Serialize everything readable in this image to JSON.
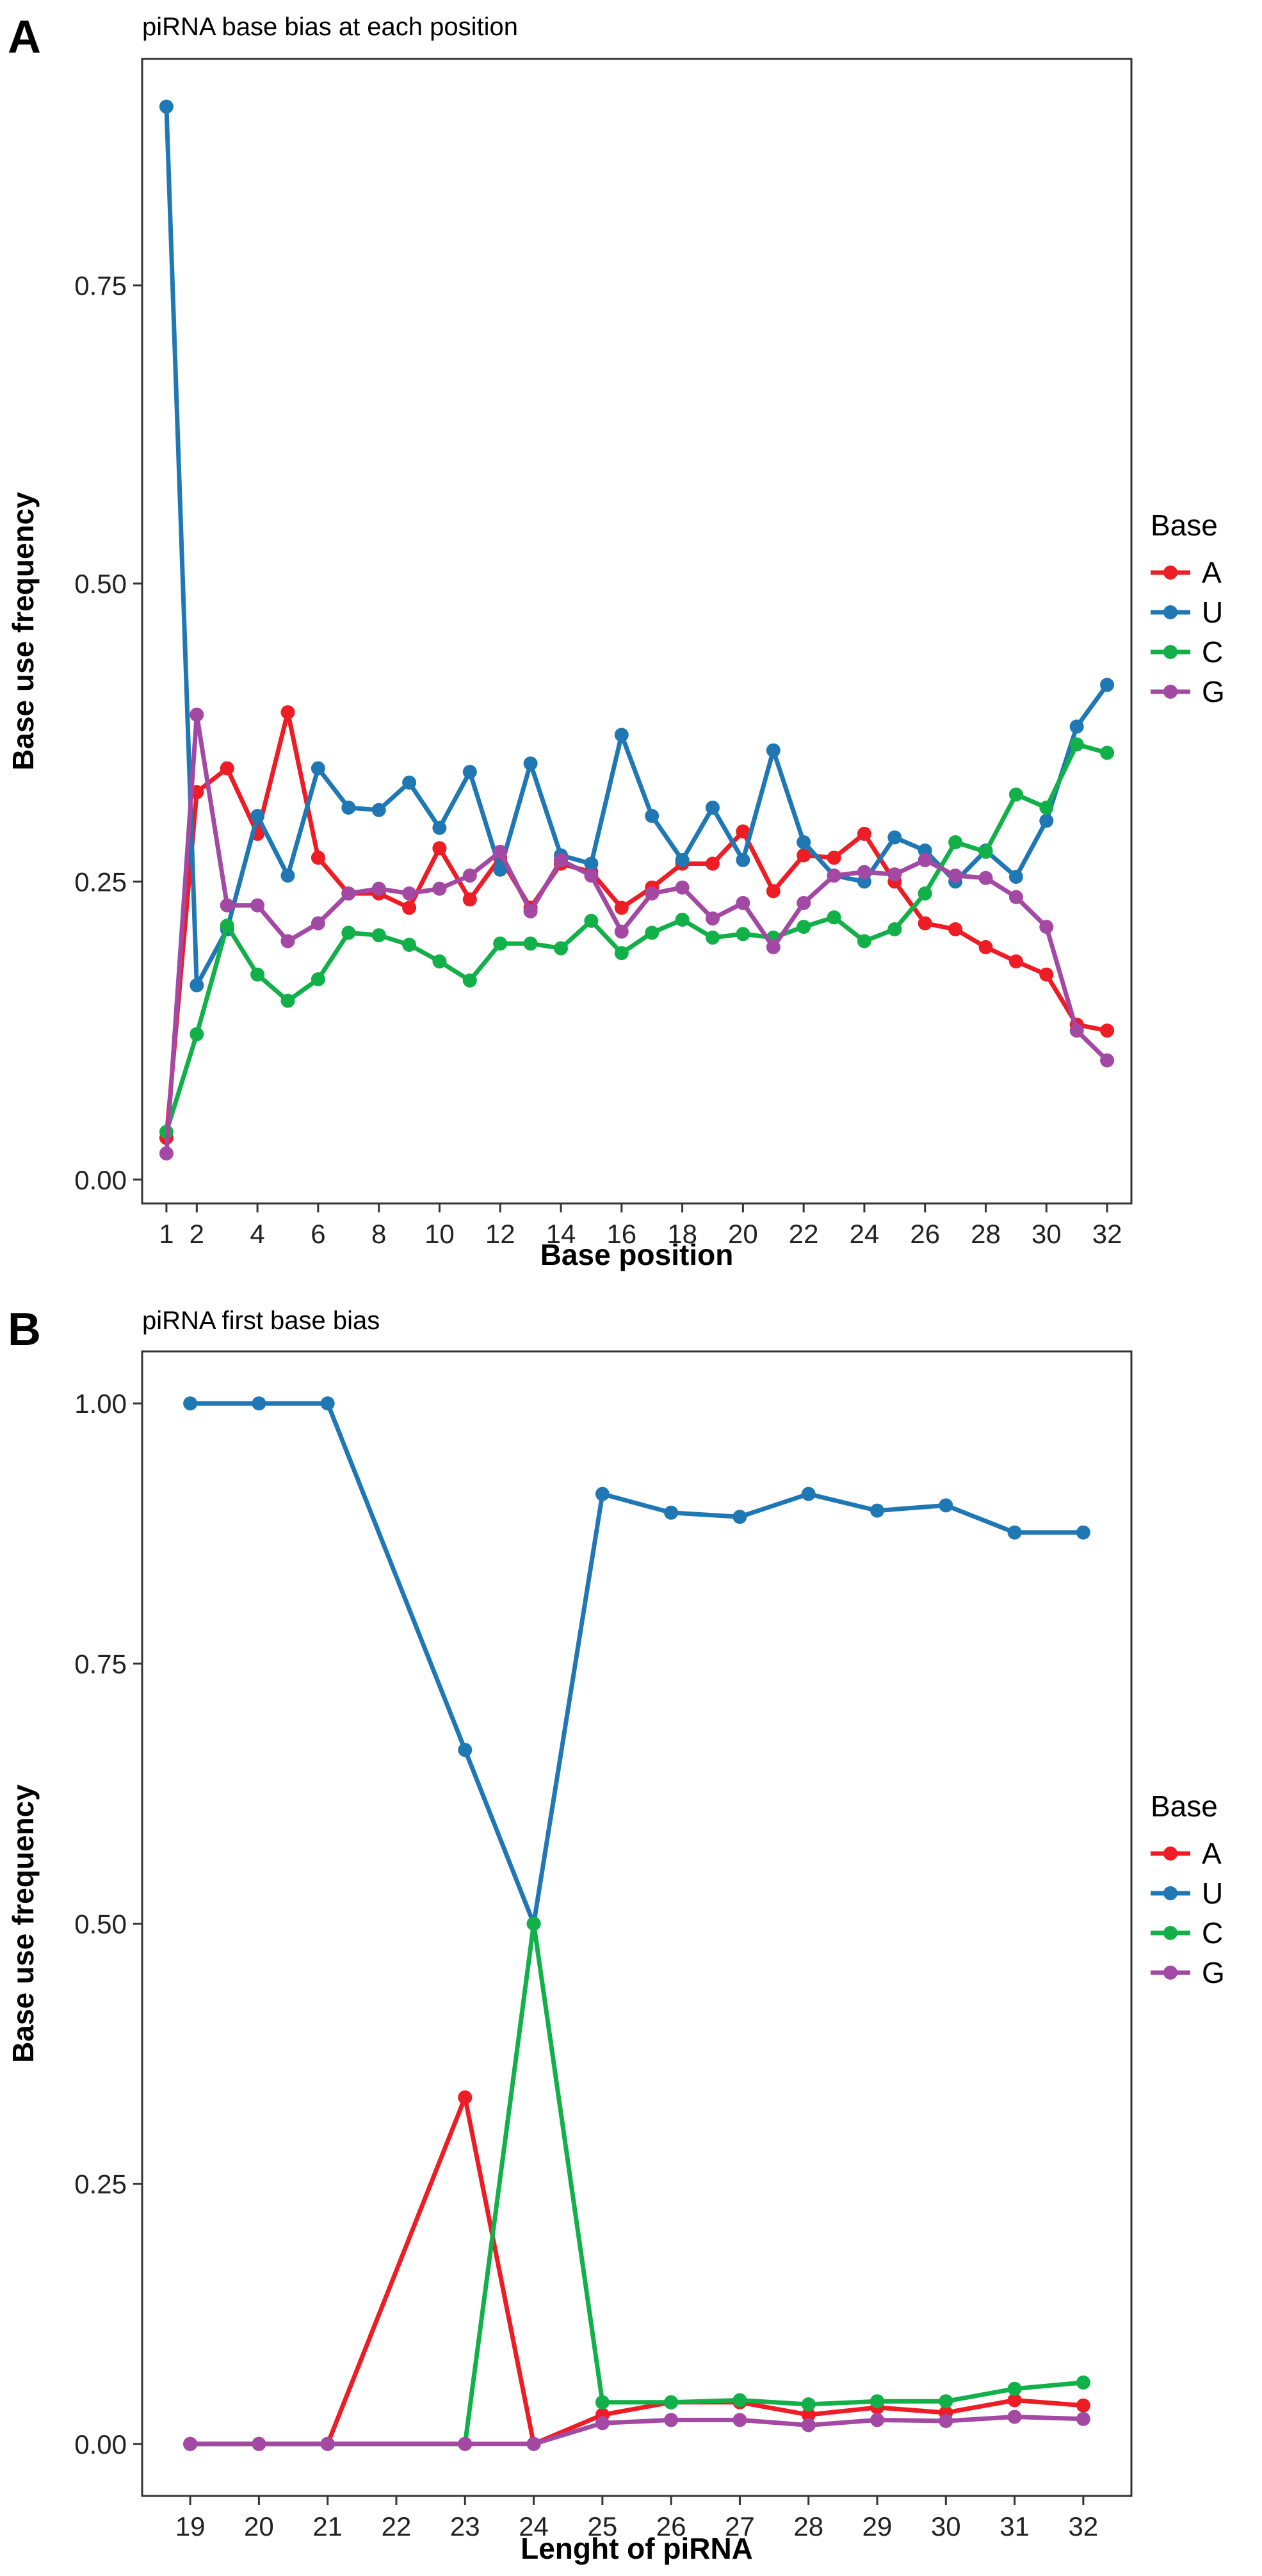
{
  "colors": {
    "A": "#ee1c25",
    "U": "#1f78b4",
    "C": "#12b048",
    "G": "#a349a4"
  },
  "chart_data": [
    {
      "type": "line",
      "panel_label": "A",
      "title": "piRNA base bias at each position",
      "xlabel": "Base position",
      "ylabel": "Base use frequency",
      "xlim": [
        0.2,
        32.8
      ],
      "ylim": [
        -0.02,
        0.94
      ],
      "yticks": [
        0.0,
        0.25,
        0.5,
        0.75
      ],
      "ytick_labels": [
        "0.00",
        "0.25",
        "0.50",
        "0.75"
      ],
      "xticks": [
        1,
        2,
        4,
        6,
        8,
        10,
        12,
        14,
        16,
        18,
        20,
        22,
        24,
        26,
        28,
        30,
        32
      ],
      "xtick_labels": [
        "1",
        "2",
        "4",
        "6",
        "8",
        "10",
        "12",
        "14",
        "16",
        "18",
        "20",
        "22",
        "24",
        "26",
        "28",
        "30",
        "32"
      ],
      "legend": {
        "title": "Base",
        "entries": [
          "A",
          "U",
          "C",
          "G"
        ],
        "position": "right"
      },
      "x": [
        1,
        2,
        3,
        4,
        5,
        6,
        7,
        8,
        9,
        10,
        11,
        12,
        13,
        14,
        15,
        16,
        17,
        18,
        19,
        20,
        21,
        22,
        23,
        24,
        25,
        26,
        27,
        28,
        29,
        30,
        31,
        32
      ],
      "series": [
        {
          "name": "A",
          "values": [
            0.035,
            0.325,
            0.345,
            0.29,
            0.392,
            0.27,
            0.24,
            0.24,
            0.228,
            0.278,
            0.235,
            0.27,
            0.228,
            0.265,
            0.258,
            0.228,
            0.245,
            0.265,
            0.265,
            0.292,
            0.242,
            0.272,
            0.27,
            0.29,
            0.25,
            0.215,
            0.21,
            0.195,
            0.183,
            0.172,
            0.13,
            0.125
          ]
        },
        {
          "name": "U",
          "values": [
            0.9,
            0.163,
            0.21,
            0.305,
            0.255,
            0.345,
            0.312,
            0.31,
            0.333,
            0.295,
            0.342,
            0.26,
            0.349,
            0.272,
            0.265,
            0.373,
            0.305,
            0.268,
            0.312,
            0.268,
            0.36,
            0.283,
            0.255,
            0.25,
            0.287,
            0.276,
            0.25,
            0.276,
            0.254,
            0.301,
            0.38,
            0.415
          ]
        },
        {
          "name": "C",
          "values": [
            0.04,
            0.122,
            0.213,
            0.172,
            0.15,
            0.168,
            0.207,
            0.205,
            0.197,
            0.183,
            0.167,
            0.198,
            0.198,
            0.194,
            0.217,
            0.19,
            0.207,
            0.218,
            0.203,
            0.206,
            0.203,
            0.212,
            0.22,
            0.2,
            0.21,
            0.24,
            0.283,
            0.275,
            0.323,
            0.312,
            0.365,
            0.358
          ]
        },
        {
          "name": "G",
          "values": [
            0.022,
            0.39,
            0.23,
            0.23,
            0.2,
            0.215,
            0.24,
            0.244,
            0.24,
            0.244,
            0.255,
            0.275,
            0.225,
            0.268,
            0.255,
            0.208,
            0.24,
            0.245,
            0.219,
            0.232,
            0.195,
            0.232,
            0.255,
            0.258,
            0.256,
            0.268,
            0.255,
            0.253,
            0.237,
            0.212,
            0.125,
            0.1
          ]
        }
      ]
    },
    {
      "type": "line",
      "panel_label": "B",
      "title": "piRNA first base bias",
      "xlabel": "Lenght of piRNA",
      "ylabel": "Base use frequency",
      "xlim": [
        18.3,
        32.7
      ],
      "ylim": [
        -0.05,
        1.05
      ],
      "yticks": [
        0.0,
        0.25,
        0.5,
        0.75,
        1.0
      ],
      "ytick_labels": [
        "0.00",
        "0.25",
        "0.50",
        "0.75",
        "1.00"
      ],
      "xticks": [
        19,
        20,
        21,
        22,
        23,
        24,
        25,
        26,
        27,
        28,
        29,
        30,
        31,
        32
      ],
      "xtick_labels": [
        "19",
        "20",
        "21",
        "22",
        "23",
        "24",
        "25",
        "26",
        "27",
        "28",
        "29",
        "30",
        "31",
        "32"
      ],
      "legend": {
        "title": "Base",
        "entries": [
          "A",
          "U",
          "C",
          "G"
        ],
        "position": "right"
      },
      "x": [
        19,
        20,
        21,
        23,
        24,
        25,
        26,
        27,
        28,
        29,
        30,
        31,
        32
      ],
      "series": [
        {
          "name": "A",
          "values": [
            0.0,
            0.0,
            0.0,
            0.333,
            0.0,
            0.028,
            0.04,
            0.04,
            0.028,
            0.035,
            0.03,
            0.042,
            0.037
          ]
        },
        {
          "name": "U",
          "values": [
            1.0,
            1.0,
            1.0,
            0.667,
            0.5,
            0.913,
            0.895,
            0.891,
            0.913,
            0.897,
            0.902,
            0.876,
            0.876
          ]
        },
        {
          "name": "C",
          "values": [
            0.0,
            0.0,
            0.0,
            0.0,
            0.5,
            0.04,
            0.04,
            0.042,
            0.038,
            0.041,
            0.041,
            0.053,
            0.059
          ]
        },
        {
          "name": "G",
          "values": [
            0.0,
            0.0,
            0.0,
            0.0,
            0.0,
            0.02,
            0.023,
            0.023,
            0.018,
            0.023,
            0.022,
            0.026,
            0.024
          ]
        }
      ]
    }
  ]
}
